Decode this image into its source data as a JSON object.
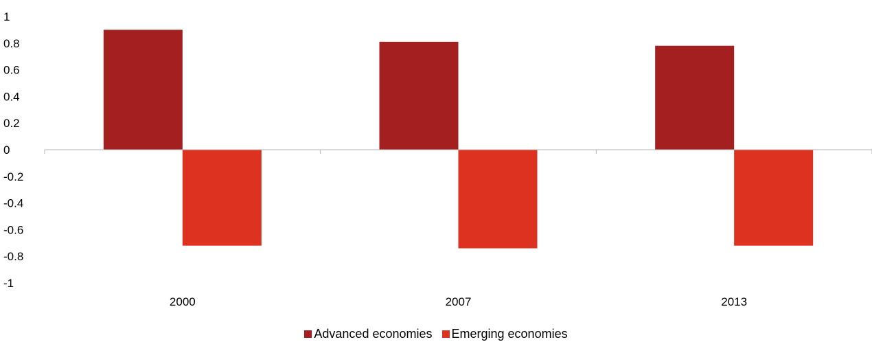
{
  "chart_data": {
    "type": "bar",
    "categories": [
      "2000",
      "2007",
      "2013"
    ],
    "series": [
      {
        "name": "Advanced economies",
        "values": [
          0.9,
          0.81,
          0.78
        ],
        "color": "#a31f20"
      },
      {
        "name": "Emerging economies",
        "values": [
          -0.72,
          -0.74,
          -0.72
        ],
        "color": "#de3220"
      }
    ],
    "yticks": [
      "1",
      "0.8",
      "0.6",
      "0.4",
      "0.2",
      "0",
      "-0.2",
      "-0.4",
      "-0.6",
      "-0.8",
      "-1"
    ],
    "ylim": [
      -1,
      1
    ],
    "grid": false,
    "legend_position": "bottom",
    "title": "",
    "xlabel": "",
    "ylabel": ""
  }
}
